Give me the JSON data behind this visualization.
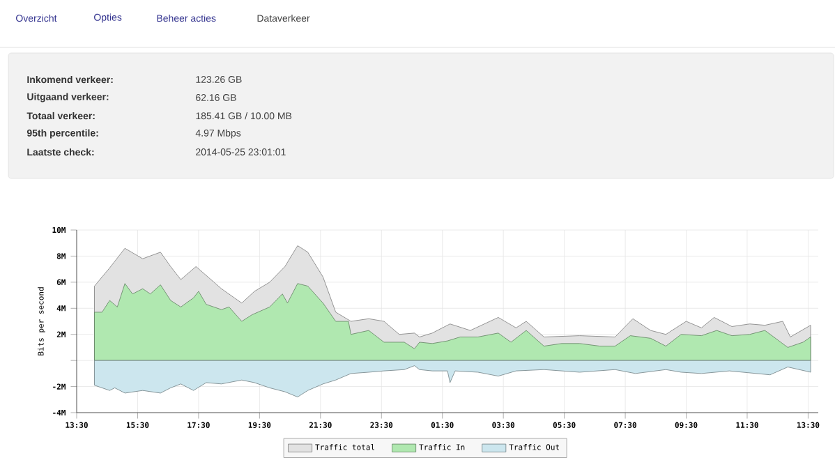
{
  "chart_data": [
    {
      "type": "other",
      "annotations": [
        "Overzicht",
        "Opties",
        "Beheer acties",
        "Dataverkeer",
        "Inkomend verkeer:",
        "123.26 GB",
        "Uitgaand verkeer:",
        "62.16 GB",
        "Totaal verkeer:",
        "185.41 GB / 10.00 MB",
        "95th percentile:",
        "4.97 Mbps",
        "Laatste check:",
        "2014-05-25 23:01:01"
      ]
    },
    {
      "type": "area",
      "ylabel": "Bits per second",
      "xlim": [
        "2014-05-24T13:30",
        "2014-05-25T13:50"
      ],
      "ylim": [
        -4,
        10
      ],
      "xticks": [
        {
          "value": "2014-05-24T13:30",
          "label": "13:30"
        },
        {
          "value": "2014-05-24T15:30",
          "label": "15:30"
        },
        {
          "value": "2014-05-24T17:30",
          "label": "17:30"
        },
        {
          "value": "2014-05-24T19:30",
          "label": "19:30"
        },
        {
          "value": "2014-05-24T21:30",
          "label": "21:30"
        },
        {
          "value": "2014-05-24T23:30",
          "label": "23:30"
        },
        {
          "value": "2014-05-25T01:30",
          "label": "01:30"
        },
        {
          "value": "2014-05-25T03:30",
          "label": "03:30"
        },
        {
          "value": "2014-05-25T05:30",
          "label": "05:30"
        },
        {
          "value": "2014-05-25T07:30",
          "label": "07:30"
        },
        {
          "value": "2014-05-25T09:30",
          "label": "09:30"
        },
        {
          "value": "2014-05-25T11:30",
          "label": "11:30"
        },
        {
          "value": "2014-05-25T13:30",
          "label": "13:30"
        }
      ],
      "yticks": [
        {
          "value": -4,
          "label": "-4M"
        },
        {
          "value": -2,
          "label": "-2M"
        },
        {
          "value": 0,
          "label": null
        },
        {
          "value": 2,
          "label": "2M"
        },
        {
          "value": 4,
          "label": "4M"
        },
        {
          "value": 6,
          "label": "6M"
        },
        {
          "value": 8,
          "label": "8M"
        },
        {
          "value": 10,
          "label": "10M"
        }
      ],
      "grid": true,
      "legend": "bottom",
      "series": [
        {
          "name": "Traffic total",
          "color": "#e2e2e2",
          "x": [
            "2014-05-24T14:05",
            "2014-05-24T14:35",
            "2014-05-24T15:05",
            "2014-05-24T15:40",
            "2014-05-24T16:15",
            "2014-05-24T16:35",
            "2014-05-24T16:55",
            "2014-05-24T17:25",
            "2014-05-24T18:15",
            "2014-05-24T18:55",
            "2014-05-24T19:20",
            "2014-05-24T19:50",
            "2014-05-24T20:20",
            "2014-05-24T20:45",
            "2014-05-24T21:05",
            "2014-05-24T21:35",
            "2014-05-24T22:00",
            "2014-05-24T22:30",
            "2014-05-24T23:05",
            "2014-05-24T23:35",
            "2014-05-25T00:05",
            "2014-05-25T00:35",
            "2014-05-25T00:45",
            "2014-05-25T01:10",
            "2014-05-25T01:45",
            "2014-05-25T02:25",
            "2014-05-25T03:20",
            "2014-05-25T03:55",
            "2014-05-25T04:15",
            "2014-05-25T04:50",
            "2014-05-25T06:00",
            "2014-05-25T07:10",
            "2014-05-25T07:45",
            "2014-05-25T08:20",
            "2014-05-25T08:50",
            "2014-05-25T09:30",
            "2014-05-25T10:00",
            "2014-05-25T10:25",
            "2014-05-25T11:00",
            "2014-05-25T11:35",
            "2014-05-25T12:05",
            "2014-05-25T12:40",
            "2014-05-25T12:55",
            "2014-05-25T13:35"
          ],
          "values": [
            5.7,
            7.1,
            8.6,
            7.8,
            8.3,
            7.2,
            6.2,
            7.2,
            5.5,
            4.4,
            5.3,
            6.0,
            7.2,
            8.8,
            8.3,
            6.4,
            3.7,
            3.0,
            3.2,
            3.0,
            2.0,
            2.1,
            1.8,
            2.1,
            2.8,
            2.3,
            3.3,
            2.5,
            3.0,
            1.8,
            1.9,
            1.8,
            3.2,
            2.3,
            2.0,
            3.0,
            2.5,
            3.3,
            2.6,
            2.8,
            2.7,
            3.0,
            1.8,
            2.7
          ]
        },
        {
          "name": "Traffic In",
          "color": "#b0e8b0",
          "x": [
            "2014-05-24T14:05",
            "2014-05-24T14:20",
            "2014-05-24T14:35",
            "2014-05-24T14:50",
            "2014-05-24T15:05",
            "2014-05-24T15:20",
            "2014-05-24T15:40",
            "2014-05-24T15:55",
            "2014-05-24T16:15",
            "2014-05-24T16:35",
            "2014-05-24T16:55",
            "2014-05-24T17:20",
            "2014-05-24T17:30",
            "2014-05-24T17:45",
            "2014-05-24T18:15",
            "2014-05-24T18:30",
            "2014-05-24T18:55",
            "2014-05-24T19:15",
            "2014-05-24T19:50",
            "2014-05-24T20:15",
            "2014-05-24T20:25",
            "2014-05-24T20:45",
            "2014-05-24T21:05",
            "2014-05-24T21:35",
            "2014-05-24T22:00",
            "2014-05-24T22:25",
            "2014-05-24T22:30",
            "2014-05-24T23:05",
            "2014-05-24T23:35",
            "2014-05-25T00:15",
            "2014-05-25T00:35",
            "2014-05-25T00:45",
            "2014-05-25T01:10",
            "2014-05-25T01:40",
            "2014-05-25T02:05",
            "2014-05-25T02:40",
            "2014-05-25T03:20",
            "2014-05-25T03:45",
            "2014-05-25T04:15",
            "2014-05-25T04:50",
            "2014-05-25T05:25",
            "2014-05-25T06:00",
            "2014-05-25T06:40",
            "2014-05-25T07:10",
            "2014-05-25T07:40",
            "2014-05-25T08:20",
            "2014-05-25T08:50",
            "2014-05-25T09:20",
            "2014-05-25T10:00",
            "2014-05-25T10:30",
            "2014-05-25T11:00",
            "2014-05-25T11:35",
            "2014-05-25T12:05",
            "2014-05-25T12:50",
            "2014-05-25T13:20",
            "2014-05-25T13:35"
          ],
          "values": [
            3.7,
            3.7,
            4.6,
            4.1,
            5.9,
            5.1,
            5.5,
            5.1,
            5.8,
            4.6,
            4.1,
            4.8,
            5.3,
            4.3,
            3.9,
            4.1,
            3.0,
            3.5,
            4.1,
            5.1,
            4.4,
            5.9,
            5.7,
            4.4,
            3.0,
            3.0,
            2.0,
            2.3,
            1.4,
            1.4,
            0.9,
            1.4,
            1.3,
            1.5,
            1.8,
            1.8,
            2.1,
            1.4,
            2.3,
            1.1,
            1.3,
            1.3,
            1.1,
            1.1,
            1.9,
            1.7,
            1.1,
            2.0,
            1.9,
            2.3,
            1.9,
            2.0,
            2.3,
            1.0,
            1.4,
            1.8
          ]
        },
        {
          "name": "Traffic Out",
          "color": "#cce6ee",
          "x": [
            "2014-05-24T14:05",
            "2014-05-24T14:35",
            "2014-05-24T14:45",
            "2014-05-24T15:05",
            "2014-05-24T15:40",
            "2014-05-24T16:15",
            "2014-05-24T16:35",
            "2014-05-24T16:55",
            "2014-05-24T17:20",
            "2014-05-24T17:45",
            "2014-05-24T18:15",
            "2014-05-24T18:55",
            "2014-05-24T19:20",
            "2014-05-24T19:50",
            "2014-05-24T20:20",
            "2014-05-24T20:45",
            "2014-05-24T21:05",
            "2014-05-24T21:35",
            "2014-05-24T22:00",
            "2014-05-24T22:30",
            "2014-05-24T23:05",
            "2014-05-24T23:35",
            "2014-05-25T00:15",
            "2014-05-25T00:35",
            "2014-05-25T00:45",
            "2014-05-25T01:10",
            "2014-05-25T01:40",
            "2014-05-25T01:45",
            "2014-05-25T01:55",
            "2014-05-25T02:40",
            "2014-05-25T03:20",
            "2014-05-25T03:55",
            "2014-05-25T04:50",
            "2014-05-25T06:00",
            "2014-05-25T07:10",
            "2014-05-25T07:50",
            "2014-05-25T08:50",
            "2014-05-25T09:20",
            "2014-05-25T10:00",
            "2014-05-25T10:55",
            "2014-05-25T12:15",
            "2014-05-25T12:50",
            "2014-05-25T13:35"
          ],
          "values": [
            -1.9,
            -2.3,
            -2.1,
            -2.5,
            -2.3,
            -2.5,
            -2.1,
            -1.8,
            -2.3,
            -1.7,
            -1.8,
            -1.5,
            -1.7,
            -2.1,
            -2.4,
            -2.8,
            -2.3,
            -1.8,
            -1.5,
            -1.0,
            -0.9,
            -0.8,
            -0.7,
            -0.4,
            -0.7,
            -0.8,
            -0.8,
            -1.7,
            -0.8,
            -0.9,
            -1.2,
            -0.8,
            -0.7,
            -0.9,
            -0.7,
            -1.0,
            -0.7,
            -0.9,
            -1.0,
            -0.8,
            -1.1,
            -0.5,
            -0.9
          ]
        }
      ]
    }
  ]
}
